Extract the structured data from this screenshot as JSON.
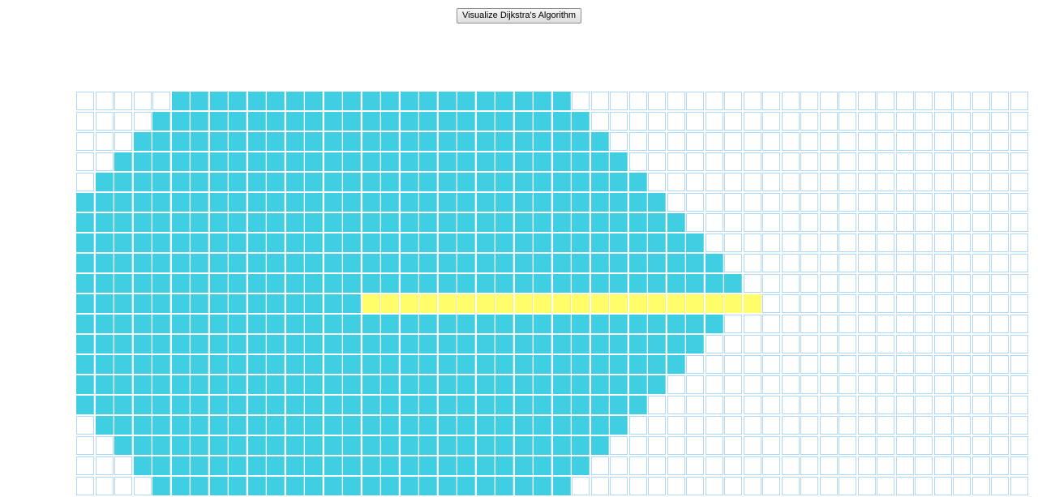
{
  "toolbar": {
    "visualize_label": "Visualize Dijkstra's Algorithm"
  },
  "grid": {
    "rows": 20,
    "cols": 50,
    "colors": {
      "unvisited": "#ffffff",
      "wall_border": "#afd8f8",
      "visited": "#40cee3",
      "shortest_path": "#fffe6a"
    },
    "visited_ranges": [
      [
        5,
        25
      ],
      [
        4,
        26
      ],
      [
        3,
        27
      ],
      [
        2,
        28
      ],
      [
        1,
        29
      ],
      [
        0,
        30
      ],
      [
        0,
        31
      ],
      [
        0,
        32
      ],
      [
        0,
        33
      ],
      [
        0,
        34
      ],
      [
        0,
        14
      ],
      [
        0,
        33
      ],
      [
        0,
        32
      ],
      [
        0,
        31
      ],
      [
        0,
        30
      ],
      [
        0,
        29
      ],
      [
        1,
        28
      ],
      [
        2,
        27
      ],
      [
        3,
        26
      ],
      [
        4,
        25
      ]
    ],
    "shortest_path": {
      "row": 10,
      "from_col": 15,
      "to_col": 35
    }
  }
}
